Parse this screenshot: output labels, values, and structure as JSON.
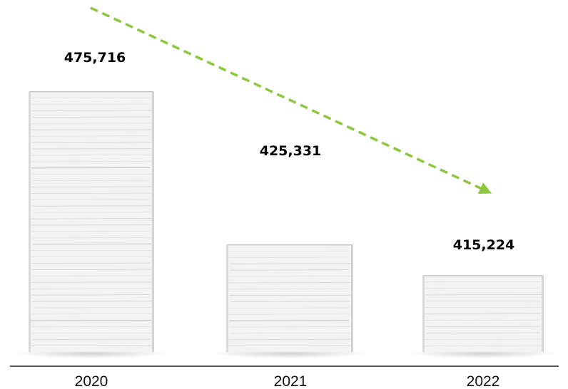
{
  "chart_data": {
    "type": "bar",
    "categories": [
      "2020",
      "2021",
      "2022"
    ],
    "values": [
      475716,
      425331,
      415224
    ],
    "value_labels": [
      "475,716",
      "425,331",
      "415,224"
    ],
    "title": "",
    "xlabel": "",
    "ylabel": "",
    "ylim": [
      390000,
      480000
    ],
    "grid": false,
    "legend": "none",
    "bar_style": "paper-stack",
    "trend_arrow": {
      "direction": "down",
      "color": "#8dc63f",
      "style": "dashed"
    },
    "colors": {
      "paper_sheet": "#f3f3f3",
      "paper_edge": "#bdbdbd",
      "value_label": "#000000",
      "tick_label": "#111111",
      "axis_line": "#222222"
    }
  }
}
